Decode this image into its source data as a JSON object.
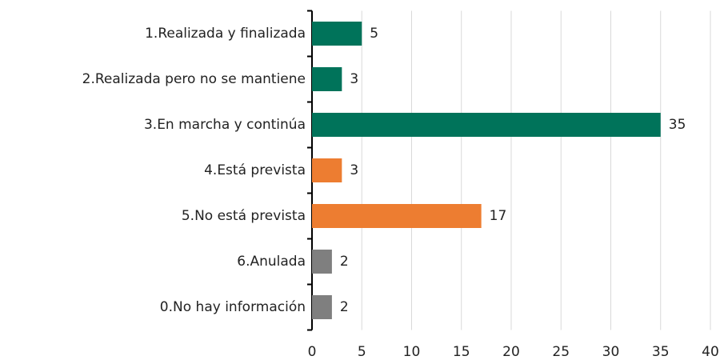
{
  "chart_data": {
    "type": "barh",
    "categories": [
      "1.Realizada y finalizada",
      "2.Realizada pero no se mantiene",
      "3.En marcha y continúa",
      "4.Está prevista",
      "5.No está prevista",
      "6.Anulada",
      "0.No hay información"
    ],
    "values": [
      5,
      3,
      35,
      3,
      17,
      2,
      2
    ],
    "colors": [
      "#00735a",
      "#00735a",
      "#00735a",
      "#ed7d31",
      "#ed7d31",
      "#7f7f7f",
      "#7f7f7f"
    ],
    "xlim": [
      0,
      40
    ],
    "xticks": [
      0,
      5,
      10,
      15,
      20,
      25,
      30,
      35,
      40
    ],
    "grid": true
  }
}
